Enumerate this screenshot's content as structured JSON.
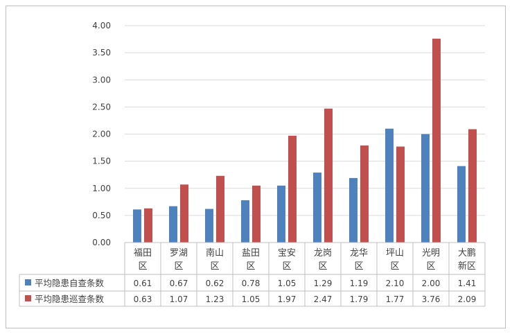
{
  "chart_data": {
    "type": "bar",
    "categories": [
      [
        "福田",
        "区"
      ],
      [
        "罗湖",
        "区"
      ],
      [
        "南山",
        "区"
      ],
      [
        "盐田",
        "区"
      ],
      [
        "宝安",
        "区"
      ],
      [
        "龙岗",
        "区"
      ],
      [
        "龙华",
        "区"
      ],
      [
        "坪山",
        "区"
      ],
      [
        "光明",
        "区"
      ],
      [
        "大鹏",
        "新区"
      ]
    ],
    "series": [
      {
        "name": "平均隐患自查条数",
        "color": "#4f81bd",
        "values": [
          0.61,
          0.67,
          0.62,
          0.78,
          1.05,
          1.29,
          1.19,
          2.1,
          2.0,
          1.41
        ],
        "labels": [
          "0.61",
          "0.67",
          "0.62",
          "0.78",
          "1.05",
          "1.29",
          "1.19",
          "2.10",
          "2.00",
          "1.41"
        ]
      },
      {
        "name": "平均隐患巡查条数",
        "color": "#c0504d",
        "values": [
          0.63,
          1.07,
          1.23,
          1.05,
          1.97,
          2.47,
          1.79,
          1.77,
          3.76,
          2.09
        ],
        "labels": [
          "0.63",
          "1.07",
          "1.23",
          "1.05",
          "1.97",
          "2.47",
          "1.79",
          "1.77",
          "3.76",
          "2.09"
        ]
      }
    ],
    "ylim": [
      0,
      4
    ],
    "yticks": [
      "0.00",
      "0.50",
      "1.00",
      "1.50",
      "2.00",
      "2.50",
      "3.00",
      "3.50",
      "4.00"
    ],
    "grid": true,
    "legend": "data-table-left"
  }
}
